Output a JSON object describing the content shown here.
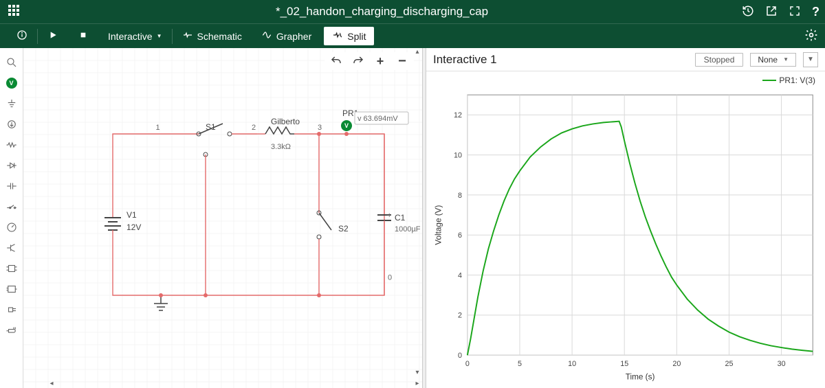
{
  "title": "*_02_handon_charging_discharging_cap",
  "toolbar": {
    "mode_label": "Interactive",
    "tabs": {
      "schematic": "Schematic",
      "grapher": "Grapher",
      "split": "Split"
    }
  },
  "palette": {
    "items": [
      "search",
      "voltage-probe",
      "ground",
      "current-source",
      "resistor",
      "diode",
      "inductor",
      "switch",
      "meter",
      "transistor",
      "ic",
      "opamp",
      "connector",
      "plug"
    ]
  },
  "schematic": {
    "canvas_grid_color": "#f4f4f4",
    "wire_color": "#e46a6a",
    "node_labels": {
      "n1": "1",
      "n2": "2",
      "n3": "3",
      "n0": "0"
    },
    "components": {
      "V1": {
        "name": "V1",
        "value": "12V"
      },
      "S1": {
        "name": "S1"
      },
      "R1": {
        "name": "Gilberto",
        "value": "3.3kΩ"
      },
      "S2": {
        "name": "S2"
      },
      "C1": {
        "name": "C1",
        "value": "1000µF"
      },
      "PR1": {
        "name": "PR1",
        "reading": "63.694mV",
        "probe_color": "#0a8a34"
      }
    }
  },
  "grapher": {
    "title": "Interactive 1",
    "status": "Stopped",
    "selected_series": "None",
    "legend_label": "PR1: V(3)",
    "axes": {
      "xlabel": "Time (s)",
      "ylabel": "Voltage (V)",
      "xlim": [
        0,
        33
      ],
      "ylim": [
        0,
        13
      ],
      "xticks": [
        0,
        5,
        10,
        15,
        20,
        25,
        30
      ],
      "yticks": [
        0,
        2,
        4,
        6,
        8,
        10,
        12
      ],
      "grid_color": "#d9d9d9",
      "background_color": "#ffffff",
      "label_fontsize": 12,
      "tick_fontsize": 11
    },
    "series": {
      "name": "PR1: V(3)",
      "color": "#1aa61a",
      "line_width": 2,
      "points": [
        [
          0.0,
          0.0
        ],
        [
          0.3,
          0.8
        ],
        [
          0.6,
          1.7
        ],
        [
          1.0,
          2.9
        ],
        [
          1.5,
          4.2
        ],
        [
          2.0,
          5.3
        ],
        [
          2.5,
          6.2
        ],
        [
          3.0,
          7.0
        ],
        [
          3.5,
          7.7
        ],
        [
          4.0,
          8.3
        ],
        [
          4.5,
          8.8
        ],
        [
          5.0,
          9.2
        ],
        [
          6.0,
          9.9
        ],
        [
          7.0,
          10.4
        ],
        [
          8.0,
          10.8
        ],
        [
          9.0,
          11.1
        ],
        [
          10.0,
          11.3
        ],
        [
          11.0,
          11.45
        ],
        [
          12.0,
          11.55
        ],
        [
          13.0,
          11.62
        ],
        [
          14.0,
          11.66
        ],
        [
          14.5,
          11.68
        ],
        [
          14.5,
          11.68
        ],
        [
          14.7,
          11.4
        ],
        [
          15.0,
          10.7
        ],
        [
          15.5,
          9.6
        ],
        [
          16.0,
          8.6
        ],
        [
          16.5,
          7.7
        ],
        [
          17.0,
          6.9
        ],
        [
          17.5,
          6.2
        ],
        [
          18.0,
          5.55
        ],
        [
          18.5,
          4.95
        ],
        [
          19.0,
          4.4
        ],
        [
          19.5,
          3.9
        ],
        [
          20.0,
          3.5
        ],
        [
          21.0,
          2.8
        ],
        [
          22.0,
          2.25
        ],
        [
          23.0,
          1.8
        ],
        [
          24.0,
          1.45
        ],
        [
          25.0,
          1.15
        ],
        [
          26.0,
          0.92
        ],
        [
          27.0,
          0.74
        ],
        [
          28.0,
          0.59
        ],
        [
          29.0,
          0.47
        ],
        [
          30.0,
          0.38
        ],
        [
          31.0,
          0.3
        ],
        [
          32.0,
          0.24
        ],
        [
          33.0,
          0.19
        ]
      ]
    }
  }
}
